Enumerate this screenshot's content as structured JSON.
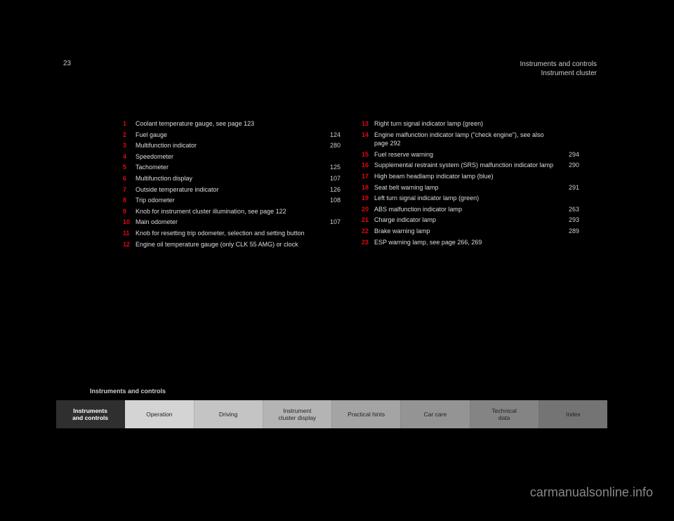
{
  "page_number": "23",
  "header_title": "Instruments and controls",
  "header_sub": "Instrument cluster",
  "left_items": [
    {
      "n": "1",
      "label": "Coolant temperature gauge, see page 123",
      "pg": ""
    },
    {
      "n": "2",
      "label": "Fuel gauge",
      "pg": "124"
    },
    {
      "n": "3",
      "label": "Multifunction indicator",
      "pg": "280"
    },
    {
      "n": "4",
      "label": "Speedometer",
      "pg": ""
    },
    {
      "n": "5",
      "label": "Tachometer",
      "pg": "125"
    },
    {
      "n": "6",
      "label": "Multifunction display",
      "pg": "107"
    },
    {
      "n": "7",
      "label": "Outside temperature indicator",
      "pg": "126"
    },
    {
      "n": "8",
      "label": "Trip odometer",
      "pg": "108"
    },
    {
      "n": "9",
      "label": "Knob for instrument cluster illumination, see page 122",
      "pg": ""
    },
    {
      "n": "10",
      "label": "Main odometer",
      "pg": "107"
    },
    {
      "n": "11",
      "label": "Knob for resetting trip odometer, selection and setting button",
      "pg": ""
    },
    {
      "n": "12",
      "label": "Engine oil temperature gauge (only CLK 55 AMG) or clock",
      "pg": ""
    }
  ],
  "right_items": [
    {
      "n": "13",
      "label": "Right turn signal indicator lamp (green)",
      "pg": ""
    },
    {
      "n": "14",
      "label": "Engine malfunction indicator lamp (\"check engine\"), see also page 292",
      "pg": ""
    },
    {
      "n": "15",
      "label": "Fuel reserve warning",
      "pg": "294"
    },
    {
      "n": "16",
      "label": "Supplemental restraint system (SRS) malfunction indicator lamp",
      "pg": "290"
    },
    {
      "n": "17",
      "label": "High beam headlamp indicator lamp (blue)",
      "pg": ""
    },
    {
      "n": "18",
      "label": "Seat belt warning lamp",
      "pg": "291"
    },
    {
      "n": "19",
      "label": "Left turn signal indicator lamp (green)",
      "pg": ""
    },
    {
      "n": "20",
      "label": "ABS malfunction indicator lamp",
      "pg": "263"
    },
    {
      "n": "21",
      "label": "Charge indicator lamp",
      "pg": "293"
    },
    {
      "n": "22",
      "label": "Brake warning lamp",
      "pg": "289"
    },
    {
      "n": "23",
      "label": "ESP warning lamp, see page 266, 269",
      "pg": ""
    }
  ],
  "section_title": "Instruments and controls",
  "nav_tabs": [
    {
      "label": "Instruments\nand controls",
      "bg": "#2f2f2f",
      "active": true
    },
    {
      "label": "Operation",
      "bg": "#d4d4d4",
      "active": false
    },
    {
      "label": "Driving",
      "bg": "#c4c4c4",
      "active": false
    },
    {
      "label": "Instrument\ncluster display",
      "bg": "#b4b4b4",
      "active": false
    },
    {
      "label": "Practical hints",
      "bg": "#a4a4a4",
      "active": false
    },
    {
      "label": "Car care",
      "bg": "#949494",
      "active": false
    },
    {
      "label": "Technical\ndata",
      "bg": "#848484",
      "active": false
    },
    {
      "label": "Index",
      "bg": "#747474",
      "active": false
    }
  ],
  "watermark_pre": "carmanualsonline",
  "watermark_suf": "info"
}
